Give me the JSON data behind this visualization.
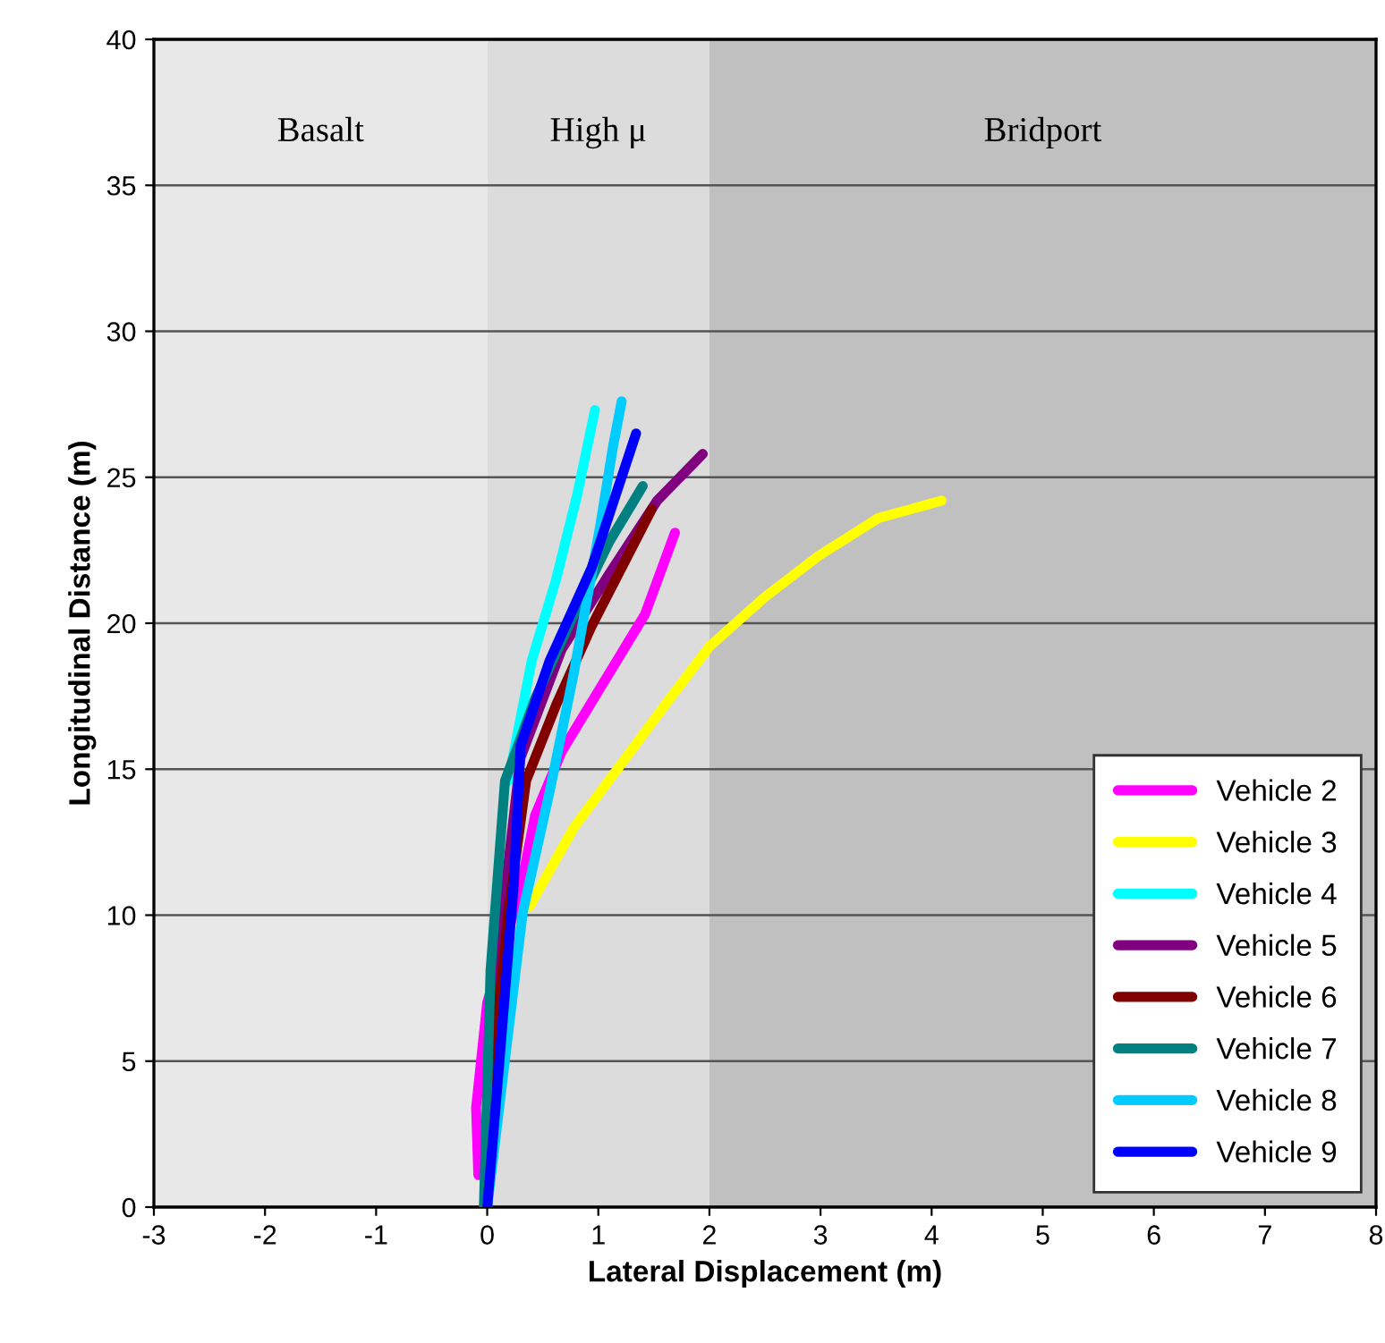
{
  "chart_data": {
    "type": "line",
    "xlabel": "Lateral Displacement (m)",
    "ylabel": "Longitudinal Distance (m)",
    "xlim": [
      -3,
      8
    ],
    "ylim": [
      0,
      40
    ],
    "xticks": [
      -3,
      -2,
      -1,
      0,
      1,
      2,
      3,
      4,
      5,
      6,
      7,
      8
    ],
    "yticks": [
      0,
      5,
      10,
      15,
      20,
      25,
      30,
      35,
      40
    ],
    "grid": "y",
    "legend": "bottom right",
    "marker": "none",
    "line_style": "solid",
    "bands": [
      {
        "axis": "x",
        "from": -3,
        "to": 0,
        "label": "Basalt",
        "color": "#e8e8e8"
      },
      {
        "axis": "x",
        "from": 0,
        "to": 2,
        "label": "High μ",
        "color": "#dcdcdc"
      },
      {
        "axis": "x",
        "from": 2,
        "to": 8,
        "label": "Bridport",
        "color": "#c0c0c0"
      }
    ],
    "series": [
      {
        "name": "Vehicle 2",
        "color": "#ff00ff",
        "x": [
          -0.08,
          -0.1,
          0.0,
          0.3,
          0.43,
          0.67,
          1.1,
          1.42,
          1.69
        ],
        "values": [
          1.1,
          3.4,
          7.0,
          10.9,
          13.4,
          15.6,
          18.3,
          20.3,
          23.1
        ]
      },
      {
        "name": "Vehicle 3",
        "color": "#ffff00",
        "x": [
          0.38,
          0.78,
          1.21,
          1.64,
          2.0,
          2.5,
          2.98,
          3.52,
          4.09
        ],
        "values": [
          10.3,
          13.0,
          15.2,
          17.4,
          19.2,
          20.9,
          22.3,
          23.6,
          24.2
        ]
      },
      {
        "name": "Vehicle 4",
        "color": "#00ffff",
        "x": [
          0.19,
          0.4,
          0.62,
          0.81,
          0.97
        ],
        "values": [
          14.6,
          18.7,
          21.5,
          24.4,
          27.3
        ]
      },
      {
        "name": "Vehicle 5",
        "color": "#800080",
        "x": [
          0,
          0.08,
          0.3,
          0.67,
          1.1,
          1.53,
          1.94
        ],
        "values": [
          0,
          8.1,
          15.4,
          19.1,
          21.7,
          24.2,
          25.8
        ]
      },
      {
        "name": "Vehicle 6",
        "color": "#800000",
        "x": [
          0,
          0.08,
          0.19,
          0.35,
          0.62,
          0.94,
          1.21,
          1.48
        ],
        "values": [
          0,
          6,
          10.1,
          14.6,
          17.2,
          19.9,
          21.9,
          23.9
        ]
      },
      {
        "name": "Vehicle 7",
        "color": "#008080",
        "x": [
          -0.03,
          0.03,
          0.16,
          0.43,
          0.78,
          1.1,
          1.4
        ],
        "values": [
          0,
          8.1,
          14.6,
          17.4,
          20.3,
          22.8,
          24.7
        ]
      },
      {
        "name": "Vehicle 8",
        "color": "#00ccff",
        "x": [
          0,
          0.19,
          0.32,
          0.56,
          0.78,
          1.02,
          1.13,
          1.21
        ],
        "values": [
          0,
          6,
          10.1,
          14.2,
          18.3,
          23.4,
          26,
          27.6
        ]
      },
      {
        "name": "Vehicle 9",
        "color": "#0000ff",
        "x": [
          0,
          0.11,
          0.24,
          0.3,
          0.56,
          0.94,
          1.34
        ],
        "values": [
          0,
          5,
          11.1,
          15.8,
          18.7,
          21.9,
          26.5
        ]
      }
    ]
  }
}
